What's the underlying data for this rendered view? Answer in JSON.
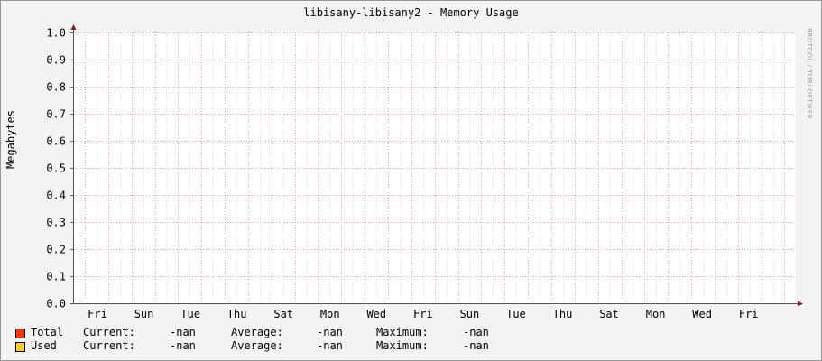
{
  "chart_data": {
    "type": "line",
    "title": "libisany-libisany2 - Memory Usage",
    "ylabel": "Megabytes",
    "ylim": [
      0,
      1.0
    ],
    "yticks": [
      "0.0",
      "0.1",
      "0.2",
      "0.3",
      "0.4",
      "0.5",
      "0.6",
      "0.7",
      "0.8",
      "0.9",
      "1.0"
    ],
    "xticks": [
      "Fri",
      "Sun",
      "Tue",
      "Thu",
      "Sat",
      "Mon",
      "Wed",
      "Fri",
      "Sun",
      "Tue",
      "Thu",
      "Sat",
      "Mon",
      "Wed",
      "Fri"
    ],
    "grid": true,
    "series": [
      {
        "name": "Total",
        "color": "#ff3300",
        "values": [],
        "current": "-nan",
        "average": "-nan",
        "maximum": "-nan"
      },
      {
        "name": "Used",
        "color": "#ffcc33",
        "values": [],
        "current": "-nan",
        "average": "-nan",
        "maximum": "-nan"
      }
    ],
    "legend_labels": {
      "current": "Current:",
      "average": "Average:",
      "maximum": "Maximum:"
    },
    "watermark": "RRDTOOL / TOBI OETIKER"
  }
}
